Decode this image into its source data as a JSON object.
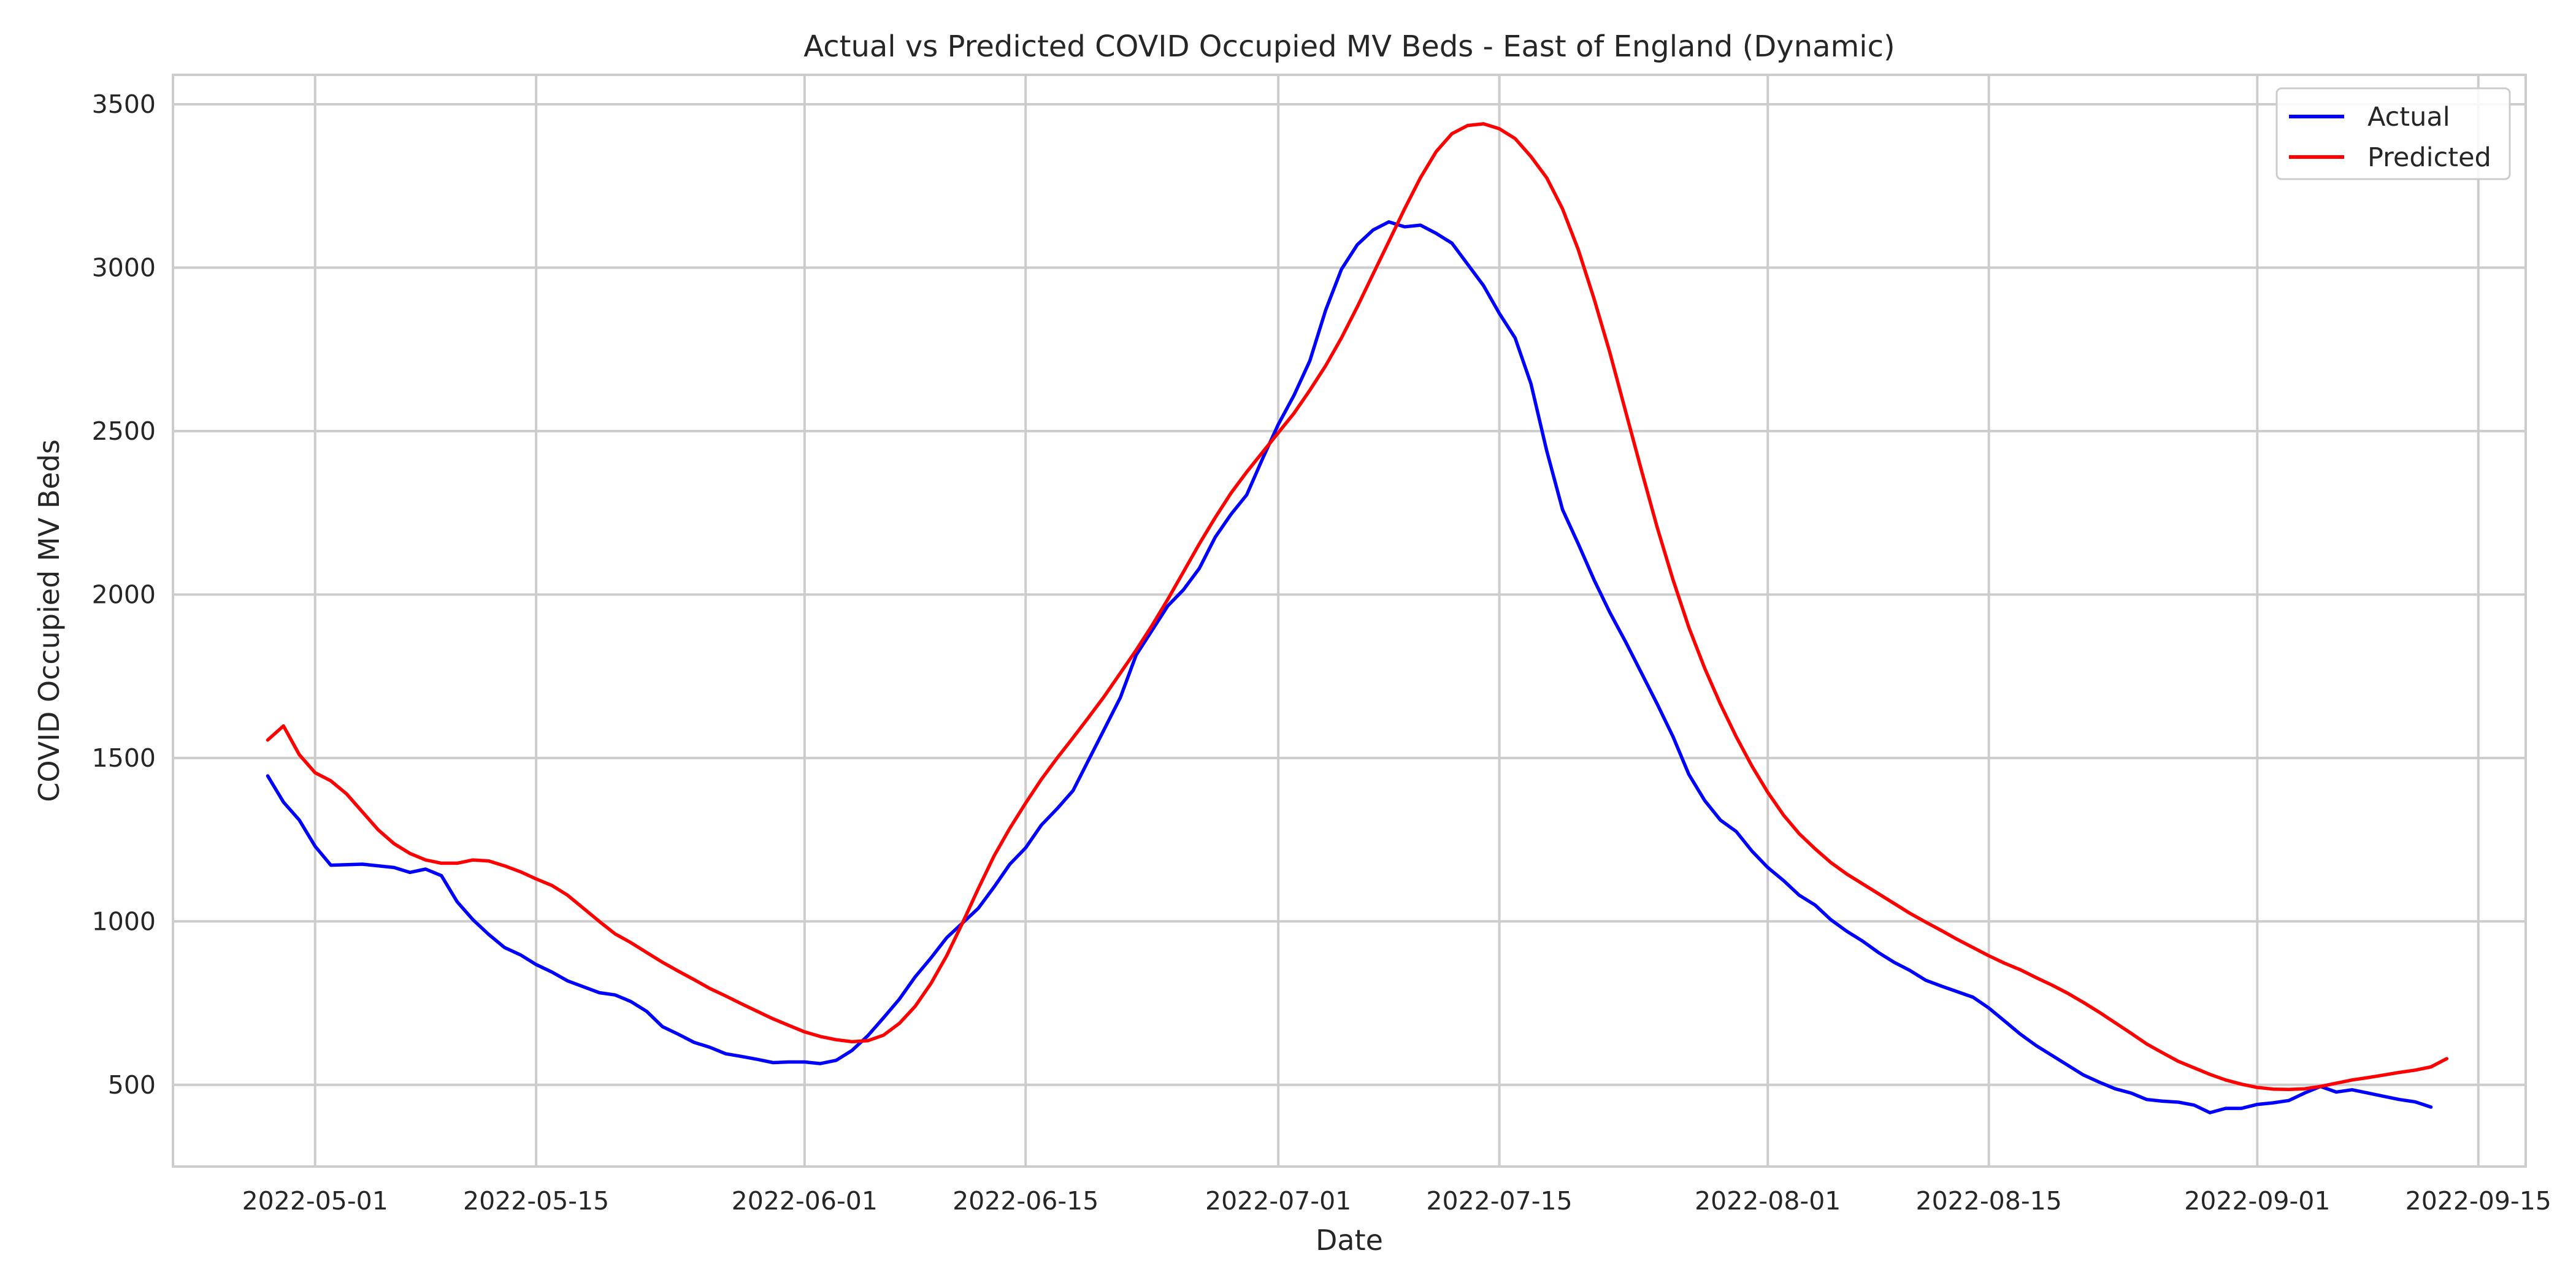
{
  "chart_data": {
    "type": "line",
    "title": "Actual vs Predicted COVID Occupied MV Beds - East of England (Dynamic)",
    "xlabel": "Date",
    "ylabel": "COVID Occupied MV Beds",
    "x_range": [
      "2022-04-22",
      "2022-09-18"
    ],
    "ylim": [
      250,
      3590
    ],
    "x_ticks": [
      "2022-05-01",
      "2022-05-15",
      "2022-06-01",
      "2022-06-15",
      "2022-07-01",
      "2022-07-15",
      "2022-08-01",
      "2022-08-15",
      "2022-09-01",
      "2022-09-15"
    ],
    "y_ticks": [
      500,
      1000,
      1500,
      2000,
      2500,
      3000,
      3500
    ],
    "grid": true,
    "legend_position": "top-right",
    "series": [
      {
        "name": "Actual",
        "color": "#0000ff",
        "points": [
          [
            "2022-04-28",
            1445
          ],
          [
            "2022-04-29",
            1365
          ],
          [
            "2022-04-30",
            1310
          ],
          [
            "2022-05-01",
            1230
          ],
          [
            "2022-05-02",
            1172
          ],
          [
            "2022-05-04",
            1175
          ],
          [
            "2022-05-06",
            1165
          ],
          [
            "2022-05-07",
            1150
          ],
          [
            "2022-05-08",
            1160
          ],
          [
            "2022-05-09",
            1140
          ],
          [
            "2022-05-10",
            1060
          ],
          [
            "2022-05-11",
            1005
          ],
          [
            "2022-05-12",
            960
          ],
          [
            "2022-05-13",
            920
          ],
          [
            "2022-05-14",
            898
          ],
          [
            "2022-05-15",
            868
          ],
          [
            "2022-05-16",
            845
          ],
          [
            "2022-05-17",
            818
          ],
          [
            "2022-05-18",
            800
          ],
          [
            "2022-05-19",
            782
          ],
          [
            "2022-05-20",
            775
          ],
          [
            "2022-05-21",
            755
          ],
          [
            "2022-05-22",
            725
          ],
          [
            "2022-05-23",
            678
          ],
          [
            "2022-05-24",
            655
          ],
          [
            "2022-05-25",
            630
          ],
          [
            "2022-05-26",
            615
          ],
          [
            "2022-05-27",
            595
          ],
          [
            "2022-05-28",
            587
          ],
          [
            "2022-05-29",
            578
          ],
          [
            "2022-05-30",
            568
          ],
          [
            "2022-05-31",
            570
          ],
          [
            "2022-06-01",
            570
          ],
          [
            "2022-06-02",
            565
          ],
          [
            "2022-06-03",
            575
          ],
          [
            "2022-06-04",
            605
          ],
          [
            "2022-06-05",
            650
          ],
          [
            "2022-06-06",
            705
          ],
          [
            "2022-06-07",
            762
          ],
          [
            "2022-06-08",
            830
          ],
          [
            "2022-06-09",
            888
          ],
          [
            "2022-06-10",
            950
          ],
          [
            "2022-06-11",
            995
          ],
          [
            "2022-06-12",
            1040
          ],
          [
            "2022-06-13",
            1105
          ],
          [
            "2022-06-14",
            1175
          ],
          [
            "2022-06-15",
            1225
          ],
          [
            "2022-06-16",
            1295
          ],
          [
            "2022-06-17",
            1345
          ],
          [
            "2022-06-18",
            1400
          ],
          [
            "2022-06-19",
            1495
          ],
          [
            "2022-06-20",
            1590
          ],
          [
            "2022-06-21",
            1685
          ],
          [
            "2022-06-22",
            1815
          ],
          [
            "2022-06-23",
            1890
          ],
          [
            "2022-06-24",
            1965
          ],
          [
            "2022-06-25",
            2015
          ],
          [
            "2022-06-26",
            2080
          ],
          [
            "2022-06-27",
            2175
          ],
          [
            "2022-06-28",
            2245
          ],
          [
            "2022-06-29",
            2305
          ],
          [
            "2022-06-30",
            2415
          ],
          [
            "2022-07-01",
            2520
          ],
          [
            "2022-07-02",
            2610
          ],
          [
            "2022-07-03",
            2715
          ],
          [
            "2022-07-04",
            2870
          ],
          [
            "2022-07-05",
            2995
          ],
          [
            "2022-07-06",
            3070
          ],
          [
            "2022-07-07",
            3115
          ],
          [
            "2022-07-08",
            3140
          ],
          [
            "2022-07-09",
            3125
          ],
          [
            "2022-07-10",
            3130
          ],
          [
            "2022-07-11",
            3105
          ],
          [
            "2022-07-12",
            3075
          ],
          [
            "2022-07-13",
            3010
          ],
          [
            "2022-07-14",
            2945
          ],
          [
            "2022-07-15",
            2860
          ],
          [
            "2022-07-16",
            2785
          ],
          [
            "2022-07-17",
            2645
          ],
          [
            "2022-07-18",
            2440
          ],
          [
            "2022-07-19",
            2260
          ],
          [
            "2022-07-20",
            2155
          ],
          [
            "2022-07-21",
            2045
          ],
          [
            "2022-07-22",
            1945
          ],
          [
            "2022-07-23",
            1855
          ],
          [
            "2022-07-24",
            1760
          ],
          [
            "2022-07-25",
            1665
          ],
          [
            "2022-07-26",
            1565
          ],
          [
            "2022-07-27",
            1450
          ],
          [
            "2022-07-28",
            1370
          ],
          [
            "2022-07-29",
            1310
          ],
          [
            "2022-07-30",
            1275
          ],
          [
            "2022-07-31",
            1215
          ],
          [
            "2022-08-01",
            1165
          ],
          [
            "2022-08-02",
            1125
          ],
          [
            "2022-08-03",
            1080
          ],
          [
            "2022-08-04",
            1050
          ],
          [
            "2022-08-05",
            1005
          ],
          [
            "2022-08-06",
            970
          ],
          [
            "2022-08-07",
            940
          ],
          [
            "2022-08-08",
            905
          ],
          [
            "2022-08-09",
            875
          ],
          [
            "2022-08-10",
            850
          ],
          [
            "2022-08-11",
            820
          ],
          [
            "2022-08-12",
            802
          ],
          [
            "2022-08-13",
            785
          ],
          [
            "2022-08-14",
            768
          ],
          [
            "2022-08-15",
            735
          ],
          [
            "2022-08-16",
            695
          ],
          [
            "2022-08-17",
            655
          ],
          [
            "2022-08-18",
            620
          ],
          [
            "2022-08-19",
            590
          ],
          [
            "2022-08-20",
            560
          ],
          [
            "2022-08-21",
            530
          ],
          [
            "2022-08-22",
            508
          ],
          [
            "2022-08-23",
            488
          ],
          [
            "2022-08-24",
            475
          ],
          [
            "2022-08-25",
            455
          ],
          [
            "2022-08-26",
            450
          ],
          [
            "2022-08-27",
            447
          ],
          [
            "2022-08-28",
            438
          ],
          [
            "2022-08-29",
            415
          ],
          [
            "2022-08-30",
            428
          ],
          [
            "2022-08-31",
            428
          ],
          [
            "2022-09-01",
            440
          ],
          [
            "2022-09-02",
            445
          ],
          [
            "2022-09-03",
            452
          ],
          [
            "2022-09-04",
            475
          ],
          [
            "2022-09-05",
            495
          ],
          [
            "2022-09-06",
            478
          ],
          [
            "2022-09-07",
            485
          ],
          [
            "2022-09-08",
            475
          ],
          [
            "2022-09-09",
            465
          ],
          [
            "2022-09-10",
            455
          ],
          [
            "2022-09-11",
            448
          ],
          [
            "2022-09-12",
            432
          ]
        ]
      },
      {
        "name": "Predicted",
        "color": "#ff0000",
        "points": [
          [
            "2022-04-28",
            1555
          ],
          [
            "2022-04-29",
            1598
          ],
          [
            "2022-04-30",
            1510
          ],
          [
            "2022-05-01",
            1455
          ],
          [
            "2022-05-02",
            1430
          ],
          [
            "2022-05-03",
            1390
          ],
          [
            "2022-05-04",
            1335
          ],
          [
            "2022-05-05",
            1280
          ],
          [
            "2022-05-06",
            1238
          ],
          [
            "2022-05-07",
            1208
          ],
          [
            "2022-05-08",
            1188
          ],
          [
            "2022-05-09",
            1178
          ],
          [
            "2022-05-10",
            1178
          ],
          [
            "2022-05-11",
            1188
          ],
          [
            "2022-05-12",
            1185
          ],
          [
            "2022-05-13",
            1170
          ],
          [
            "2022-05-14",
            1152
          ],
          [
            "2022-05-15",
            1130
          ],
          [
            "2022-05-16",
            1110
          ],
          [
            "2022-05-17",
            1080
          ],
          [
            "2022-05-18",
            1040
          ],
          [
            "2022-05-19",
            1000
          ],
          [
            "2022-05-20",
            962
          ],
          [
            "2022-05-21",
            935
          ],
          [
            "2022-05-22",
            905
          ],
          [
            "2022-05-23",
            875
          ],
          [
            "2022-05-24",
            848
          ],
          [
            "2022-05-25",
            822
          ],
          [
            "2022-05-26",
            795
          ],
          [
            "2022-05-27",
            772
          ],
          [
            "2022-05-28",
            748
          ],
          [
            "2022-05-29",
            725
          ],
          [
            "2022-05-30",
            702
          ],
          [
            "2022-05-31",
            682
          ],
          [
            "2022-06-01",
            662
          ],
          [
            "2022-06-02",
            648
          ],
          [
            "2022-06-03",
            638
          ],
          [
            "2022-06-04",
            632
          ],
          [
            "2022-06-05",
            635
          ],
          [
            "2022-06-06",
            652
          ],
          [
            "2022-06-07",
            688
          ],
          [
            "2022-06-08",
            740
          ],
          [
            "2022-06-09",
            810
          ],
          [
            "2022-06-10",
            895
          ],
          [
            "2022-06-11",
            995
          ],
          [
            "2022-06-12",
            1100
          ],
          [
            "2022-06-13",
            1200
          ],
          [
            "2022-06-14",
            1285
          ],
          [
            "2022-06-15",
            1362
          ],
          [
            "2022-06-16",
            1435
          ],
          [
            "2022-06-17",
            1500
          ],
          [
            "2022-06-18",
            1562
          ],
          [
            "2022-06-19",
            1625
          ],
          [
            "2022-06-20",
            1690
          ],
          [
            "2022-06-21",
            1760
          ],
          [
            "2022-06-22",
            1830
          ],
          [
            "2022-06-23",
            1905
          ],
          [
            "2022-06-24",
            1985
          ],
          [
            "2022-06-25",
            2070
          ],
          [
            "2022-06-26",
            2155
          ],
          [
            "2022-06-27",
            2235
          ],
          [
            "2022-06-28",
            2310
          ],
          [
            "2022-06-29",
            2375
          ],
          [
            "2022-06-30",
            2435
          ],
          [
            "2022-07-01",
            2495
          ],
          [
            "2022-07-02",
            2555
          ],
          [
            "2022-07-03",
            2625
          ],
          [
            "2022-07-04",
            2700
          ],
          [
            "2022-07-05",
            2785
          ],
          [
            "2022-07-06",
            2880
          ],
          [
            "2022-07-07",
            2980
          ],
          [
            "2022-07-08",
            3080
          ],
          [
            "2022-07-09",
            3180
          ],
          [
            "2022-07-10",
            3275
          ],
          [
            "2022-07-11",
            3355
          ],
          [
            "2022-07-12",
            3410
          ],
          [
            "2022-07-13",
            3435
          ],
          [
            "2022-07-14",
            3440
          ],
          [
            "2022-07-15",
            3425
          ],
          [
            "2022-07-16",
            3395
          ],
          [
            "2022-07-17",
            3340
          ],
          [
            "2022-07-18",
            3275
          ],
          [
            "2022-07-19",
            3180
          ],
          [
            "2022-07-20",
            3055
          ],
          [
            "2022-07-21",
            2905
          ],
          [
            "2022-07-22",
            2740
          ],
          [
            "2022-07-23",
            2560
          ],
          [
            "2022-07-24",
            2380
          ],
          [
            "2022-07-25",
            2205
          ],
          [
            "2022-07-26",
            2045
          ],
          [
            "2022-07-27",
            1900
          ],
          [
            "2022-07-28",
            1775
          ],
          [
            "2022-07-29",
            1665
          ],
          [
            "2022-07-30",
            1565
          ],
          [
            "2022-07-31",
            1475
          ],
          [
            "2022-08-01",
            1395
          ],
          [
            "2022-08-02",
            1325
          ],
          [
            "2022-08-03",
            1268
          ],
          [
            "2022-08-04",
            1222
          ],
          [
            "2022-08-05",
            1180
          ],
          [
            "2022-08-06",
            1145
          ],
          [
            "2022-08-07",
            1115
          ],
          [
            "2022-08-08",
            1085
          ],
          [
            "2022-08-09",
            1055
          ],
          [
            "2022-08-10",
            1025
          ],
          [
            "2022-08-11",
            998
          ],
          [
            "2022-08-12",
            972
          ],
          [
            "2022-08-13",
            945
          ],
          [
            "2022-08-14",
            920
          ],
          [
            "2022-08-15",
            895
          ],
          [
            "2022-08-16",
            872
          ],
          [
            "2022-08-17",
            852
          ],
          [
            "2022-08-18",
            828
          ],
          [
            "2022-08-19",
            805
          ],
          [
            "2022-08-20",
            780
          ],
          [
            "2022-08-21",
            752
          ],
          [
            "2022-08-22",
            722
          ],
          [
            "2022-08-23",
            690
          ],
          [
            "2022-08-24",
            658
          ],
          [
            "2022-08-25",
            625
          ],
          [
            "2022-08-26",
            598
          ],
          [
            "2022-08-27",
            572
          ],
          [
            "2022-08-28",
            552
          ],
          [
            "2022-08-29",
            532
          ],
          [
            "2022-08-30",
            515
          ],
          [
            "2022-08-31",
            502
          ],
          [
            "2022-09-01",
            492
          ],
          [
            "2022-09-02",
            487
          ],
          [
            "2022-09-03",
            486
          ],
          [
            "2022-09-04",
            488
          ],
          [
            "2022-09-05",
            495
          ],
          [
            "2022-09-06",
            505
          ],
          [
            "2022-09-07",
            515
          ],
          [
            "2022-09-08",
            522
          ],
          [
            "2022-09-09",
            530
          ],
          [
            "2022-09-10",
            538
          ],
          [
            "2022-09-11",
            545
          ],
          [
            "2022-09-12",
            555
          ],
          [
            "2022-09-13",
            580
          ]
        ]
      }
    ]
  }
}
